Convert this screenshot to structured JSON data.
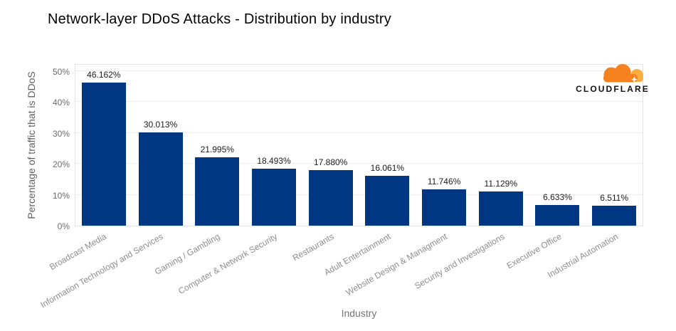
{
  "title": "Network-layer DDoS Attacks - Distribution by industry",
  "logo": {
    "wordmark": "CLOUDFLARE",
    "cloud_main_color": "#F6821F",
    "cloud_accent_color": "#FBAD41",
    "text_color": "#111111"
  },
  "chart_data": {
    "type": "bar",
    "title": "Network-layer DDoS Attacks - Distribution by industry",
    "xlabel": "Industry",
    "ylabel": "Percentage of traffic that is DDoS",
    "categories": [
      "Broadcast Media",
      "Information Technology and Services",
      "Gaming / Gambling",
      "Computer & Network Security",
      "Restaurants",
      "Adult Entertainment",
      "Website Design & Managment",
      "Security and Investigations",
      "Executive Office",
      "Industrial Automation"
    ],
    "values": [
      46.162,
      30.013,
      21.995,
      18.493,
      17.88,
      16.061,
      11.746,
      11.129,
      6.633,
      6.511
    ],
    "value_labels": [
      "46.162%",
      "30.013%",
      "21.995%",
      "18.493%",
      "17.880%",
      "16.061%",
      "11.746%",
      "11.129%",
      "6.633%",
      "6.511%"
    ],
    "yticks": [
      0,
      10,
      20,
      30,
      40,
      50
    ],
    "ytick_labels": [
      "0%",
      "10%",
      "20%",
      "30%",
      "40%",
      "50%"
    ],
    "ylim": [
      0,
      52.4
    ],
    "grid": true,
    "legend": "none",
    "bar_color": "#003682",
    "grid_color": "#ededed"
  }
}
